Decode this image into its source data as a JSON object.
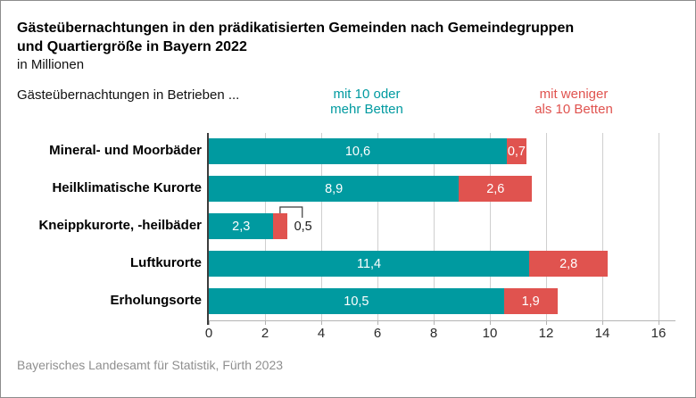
{
  "header": {
    "title_lines": [
      "Gästeübernachtungen in den prädikatisierten Gemeinden nach Gemeindegruppen",
      "und Quartiergröße in Bayern 2022"
    ],
    "subtitle": "in Millionen"
  },
  "legend": {
    "prefix": "Gästeübernachtungen in Betrieben ...",
    "series1": {
      "lines": [
        "mit 10 oder",
        "mehr Betten"
      ],
      "color": "#009AA0"
    },
    "series2": {
      "lines": [
        "mit weniger",
        "als 10 Betten"
      ],
      "color": "#E0534F"
    }
  },
  "chart_data": {
    "type": "bar",
    "orientation": "horizontal-stacked",
    "title": "Gästeübernachtungen in den prädikatisierten Gemeinden nach Gemeindegruppen und Quartiergröße in Bayern 2022",
    "subtitle": "in Millionen",
    "categories": [
      "Mineral- und Moorbäder",
      "Heilklimatische Kurorte",
      "Kneippkurorte, -heilbäder",
      "Luftkurorte",
      "Erholungsorte"
    ],
    "series": [
      {
        "name": "mit 10 oder mehr Betten",
        "color": "#009AA0",
        "values": [
          10.6,
          8.9,
          2.3,
          11.4,
          10.5
        ],
        "labels": [
          "10,6",
          "8,9",
          "2,3",
          "11,4",
          "10,5"
        ]
      },
      {
        "name": "mit weniger als 10 Betten",
        "color": "#E0534F",
        "values": [
          0.7,
          2.6,
          0.5,
          2.8,
          1.9
        ],
        "labels": [
          "0,7",
          "2,6",
          "0,5",
          "2,8",
          "1,9"
        ],
        "outside_label_index": 2
      }
    ],
    "xlim": [
      0,
      16
    ],
    "ticks": [
      0,
      2,
      4,
      6,
      8,
      10,
      12,
      14,
      16
    ],
    "grid": true,
    "legend_position": "top"
  },
  "footer": {
    "source": "Bayerisches Landesamt für Statistik, Fürth 2023"
  }
}
